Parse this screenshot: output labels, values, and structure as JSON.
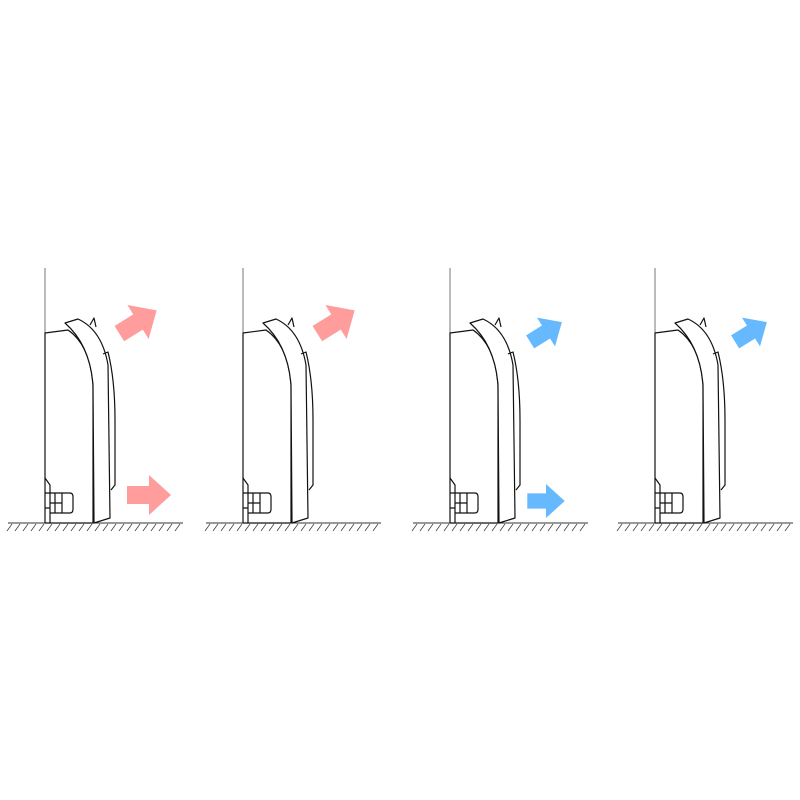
{
  "panels": [
    {
      "top_arrow": true,
      "bottom_arrow": true,
      "arrow_color": "#ff9c9c"
    },
    {
      "top_arrow": true,
      "bottom_arrow": false,
      "arrow_color": "#ff9c9c"
    },
    {
      "top_arrow": true,
      "bottom_arrow": true,
      "arrow_color": "#66b9ff"
    },
    {
      "top_arrow": true,
      "bottom_arrow": false,
      "arrow_color": "#66b9ff"
    }
  ]
}
